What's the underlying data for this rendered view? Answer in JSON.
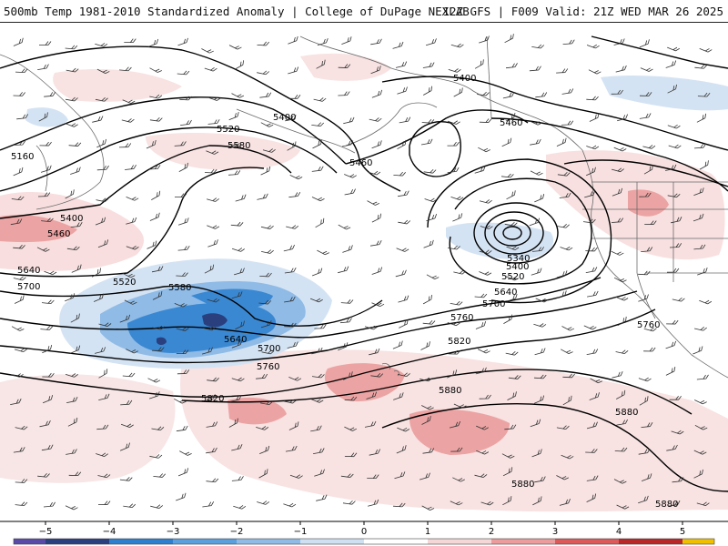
{
  "header": {
    "title": "500mb Temp 1981-2010 Standardized Anomaly | College of DuPage NEXLAB",
    "run_info": "12Z GFS | F009 Valid: 21Z WED MAR 26 2025"
  },
  "colors": {
    "land_lines": "#6a6a6a",
    "contour": "#000000",
    "neg5": "#5a4aa8",
    "neg4": "#2a3f7e",
    "neg3": "#2f7fcf",
    "neg2": "#8fbbe6",
    "neg1": "#cfe0f2",
    "neutral": "#ffffff",
    "pos1": "#f6d7d7",
    "pos2": "#ec9c9c",
    "pos3": "#dc5a5a",
    "pos4": "#b82828",
    "pos5": "#7a1010",
    "pos_extreme": "#f0c000"
  },
  "contour_labels": [
    {
      "id": "c-5160",
      "text": "5160"
    },
    {
      "id": "c-5400-nw",
      "text": "5400"
    },
    {
      "id": "c-5520-n",
      "text": "5520"
    },
    {
      "id": "c-5580-n",
      "text": "5580"
    },
    {
      "id": "c-5460-n",
      "text": "5460"
    },
    {
      "id": "c-5400-ak",
      "text": "5400"
    },
    {
      "id": "c-5460-ak",
      "text": "5460"
    },
    {
      "id": "c-5400-w",
      "text": "5400"
    },
    {
      "id": "c-5460-w",
      "text": "5460"
    },
    {
      "id": "c-5640-w",
      "text": "5640"
    },
    {
      "id": "c-5700-w",
      "text": "5700"
    },
    {
      "id": "c-5520-c",
      "text": "5520"
    },
    {
      "id": "c-5580-c",
      "text": "5580"
    },
    {
      "id": "c-5640-c",
      "text": "5640"
    },
    {
      "id": "c-5700-c",
      "text": "5700"
    },
    {
      "id": "c-5760-c",
      "text": "5760"
    },
    {
      "id": "c-5820-c",
      "text": "5820"
    },
    {
      "id": "c-5340-low",
      "text": "5340"
    },
    {
      "id": "c-5400-low",
      "text": "5400"
    },
    {
      "id": "c-5520-low",
      "text": "5520"
    },
    {
      "id": "c-5640-low",
      "text": "5640"
    },
    {
      "id": "c-5700-low",
      "text": "5700"
    },
    {
      "id": "c-5760-e",
      "text": "5760"
    },
    {
      "id": "c-5820-e",
      "text": "5820"
    },
    {
      "id": "c-5760-se",
      "text": "5760"
    },
    {
      "id": "c-5880-s",
      "text": "5880"
    },
    {
      "id": "c-5880-se",
      "text": "5880"
    },
    {
      "id": "c-5880-sc",
      "text": "5880"
    },
    {
      "id": "c-5880-far",
      "text": "5880"
    }
  ],
  "colorbar": {
    "ticks": [
      "−5",
      "−4",
      "−3",
      "−2",
      "−1",
      "0",
      "1",
      "2",
      "3",
      "4",
      "5"
    ],
    "min": -5.5,
    "max": 5.5
  }
}
